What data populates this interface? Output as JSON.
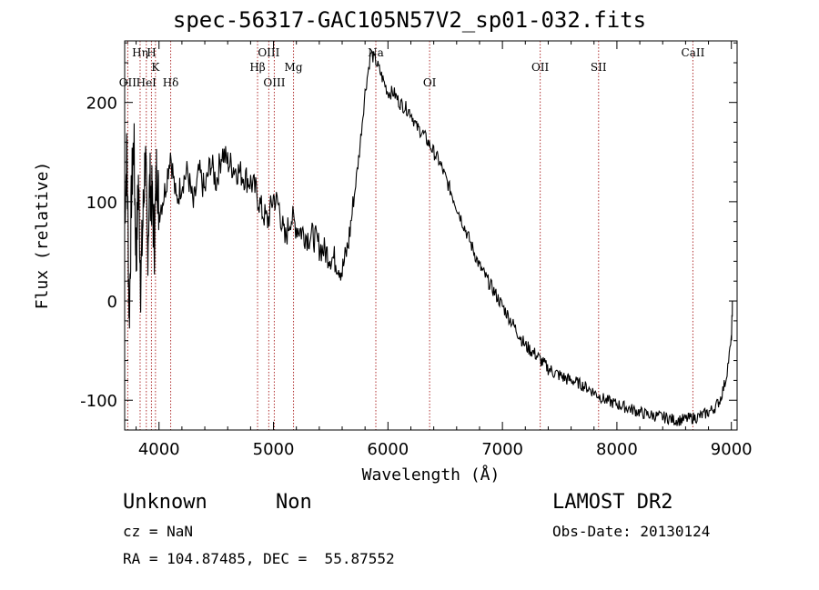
{
  "title": "spec-56317-GAC105N57V2_sp01-032.fits",
  "info": {
    "class": "Unknown",
    "subclass": "Non",
    "survey": "LAMOST DR2",
    "cz": "cz = NaN",
    "obs_date": "Obs-Date: 20130124",
    "radec": "RA = 104.87485, DEC =  55.87552"
  },
  "chart_data": {
    "type": "line",
    "title": "spec-56317-GAC105N57V2_sp01-032.fits",
    "xlabel": "Wavelength (Å)",
    "ylabel": "Flux (relative)",
    "xlim": [
      3700,
      9050
    ],
    "ylim": [
      -130,
      262
    ],
    "x_ticks": [
      4000,
      5000,
      6000,
      7000,
      8000,
      9000
    ],
    "y_ticks": [
      -100,
      0,
      100,
      200
    ],
    "line_color": "#000000",
    "marker_color": "#b03030",
    "series": [
      {
        "x": [
          3700,
          3720,
          3740,
          3760,
          3780,
          3800,
          3820,
          3840,
          3860,
          3880,
          3900,
          3920,
          3940,
          3960,
          3980,
          4000,
          4050,
          4100,
          4150,
          4200,
          4250,
          4300,
          4350,
          4400,
          4450,
          4500,
          4550,
          4600,
          4650,
          4700,
          4750,
          4800,
          4850,
          4900,
          4950,
          5000,
          5050,
          5100,
          5150,
          5200,
          5250,
          5300,
          5350,
          5400,
          5450,
          5500,
          5550,
          5600,
          5650,
          5700,
          5750,
          5800,
          5850,
          5900,
          5950,
          6000,
          6050,
          6100,
          6150,
          6200,
          6250,
          6300,
          6350,
          6400,
          6450,
          6500,
          6550,
          6600,
          6650,
          6700,
          6750,
          6800,
          6850,
          6900,
          6950,
          7000,
          7050,
          7100,
          7150,
          7200,
          7250,
          7300,
          7350,
          7400,
          7450,
          7500,
          7550,
          7600,
          7650,
          7700,
          7750,
          7800,
          7850,
          7900,
          7950,
          8000,
          8050,
          8100,
          8150,
          8200,
          8250,
          8300,
          8350,
          8400,
          8450,
          8500,
          8550,
          8600,
          8650,
          8700,
          8750,
          8800,
          8850,
          8900,
          8950,
          9000,
          9010
        ],
        "y": [
          90,
          150,
          -20,
          110,
          160,
          40,
          120,
          20,
          80,
          150,
          50,
          120,
          100,
          60,
          140,
          90,
          110,
          150,
          100,
          120,
          130,
          95,
          130,
          110,
          140,
          120,
          150,
          140,
          135,
          130,
          125,
          120,
          110,
          90,
          80,
          105,
          95,
          60,
          85,
          75,
          70,
          65,
          65,
          55,
          50,
          45,
          40,
          30,
          55,
          100,
          150,
          210,
          250,
          240,
          225,
          210,
          210,
          200,
          195,
          190,
          175,
          170,
          160,
          150,
          140,
          125,
          110,
          95,
          80,
          65,
          50,
          35,
          25,
          15,
          5,
          -5,
          -15,
          -25,
          -35,
          -45,
          -50,
          -55,
          -62,
          -68,
          -72,
          -75,
          -78,
          -80,
          -82,
          -85,
          -88,
          -92,
          -96,
          -100,
          -102,
          -104,
          -106,
          -108,
          -110,
          -112,
          -114,
          -115,
          -116,
          -117,
          -118,
          -120,
          -120,
          -119,
          -118,
          -117,
          -115,
          -112,
          -108,
          -100,
          -80,
          -40,
          0
        ]
      }
    ],
    "lines": [
      {
        "label": "OII",
        "x": 3727,
        "row": 3
      },
      {
        "label": "Hη",
        "x": 3835,
        "row": 1
      },
      {
        "label": "HeI",
        "x": 3889,
        "row": 3
      },
      {
        "label": "H",
        "x": 3934,
        "row": 1
      },
      {
        "label": "K",
        "x": 3969,
        "row": 2
      },
      {
        "label": "Hδ",
        "x": 4102,
        "row": 3
      },
      {
        "label": "Hβ",
        "x": 4861,
        "row": 2
      },
      {
        "label": "OIII",
        "x": 4959,
        "row": 1
      },
      {
        "label": "OIII",
        "x": 5007,
        "row": 3
      },
      {
        "label": "Mg",
        "x": 5175,
        "row": 2
      },
      {
        "label": "Na",
        "x": 5894,
        "row": 1
      },
      {
        "label": "OI",
        "x": 6364,
        "row": 3
      },
      {
        "label": "OII",
        "x": 7330,
        "row": 2
      },
      {
        "label": "SII",
        "x": 7840,
        "row": 2
      },
      {
        "label": "CaII",
        "x": 8664,
        "row": 1
      }
    ]
  }
}
